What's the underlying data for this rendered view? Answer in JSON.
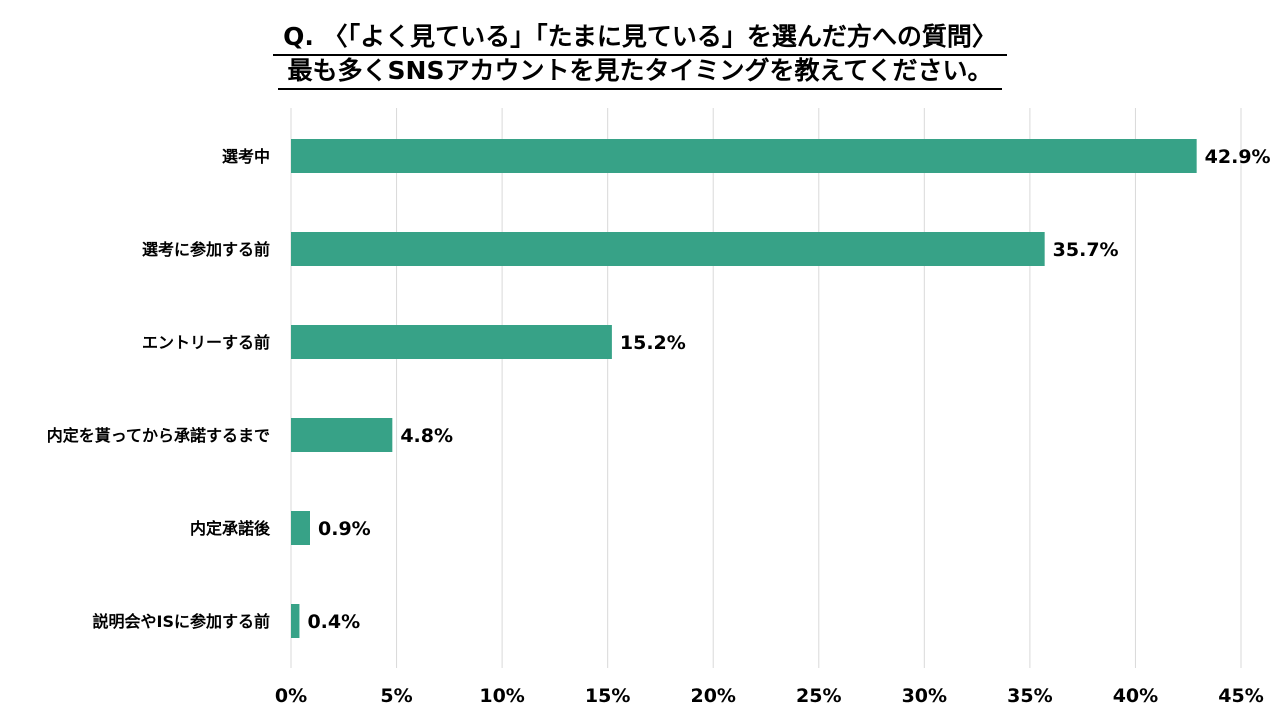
{
  "title": {
    "line1": "Q. 〈「よく見ている」「たまに見ている」を選んだ方への質問〉",
    "line2": "最も多くSNSアカウントを見たタイミングを教えてください。"
  },
  "colors": {
    "bar": "#37a287",
    "grid": "#d9d9d9",
    "text": "#000000"
  },
  "chart_data": {
    "type": "bar",
    "orientation": "horizontal",
    "categories": [
      "選考中",
      "選考に参加する前",
      "エントリーする前",
      "内定を貰ってから承諾するまで",
      "内定承諾後",
      "説明会やISに参加する前"
    ],
    "values": [
      42.9,
      35.7,
      15.2,
      4.8,
      0.9,
      0.4
    ],
    "value_labels": [
      "42.9%",
      "35.7%",
      "15.2%",
      "4.8%",
      "0.9%",
      "0.4%"
    ],
    "xlim": [
      0,
      45
    ],
    "xticks": [
      0,
      5,
      10,
      15,
      20,
      25,
      30,
      35,
      40,
      45
    ],
    "xtick_labels": [
      "0%",
      "5%",
      "10%",
      "15%",
      "20%",
      "25%",
      "30%",
      "35%",
      "40%",
      "45%"
    ],
    "grid": true,
    "legend": "none"
  }
}
